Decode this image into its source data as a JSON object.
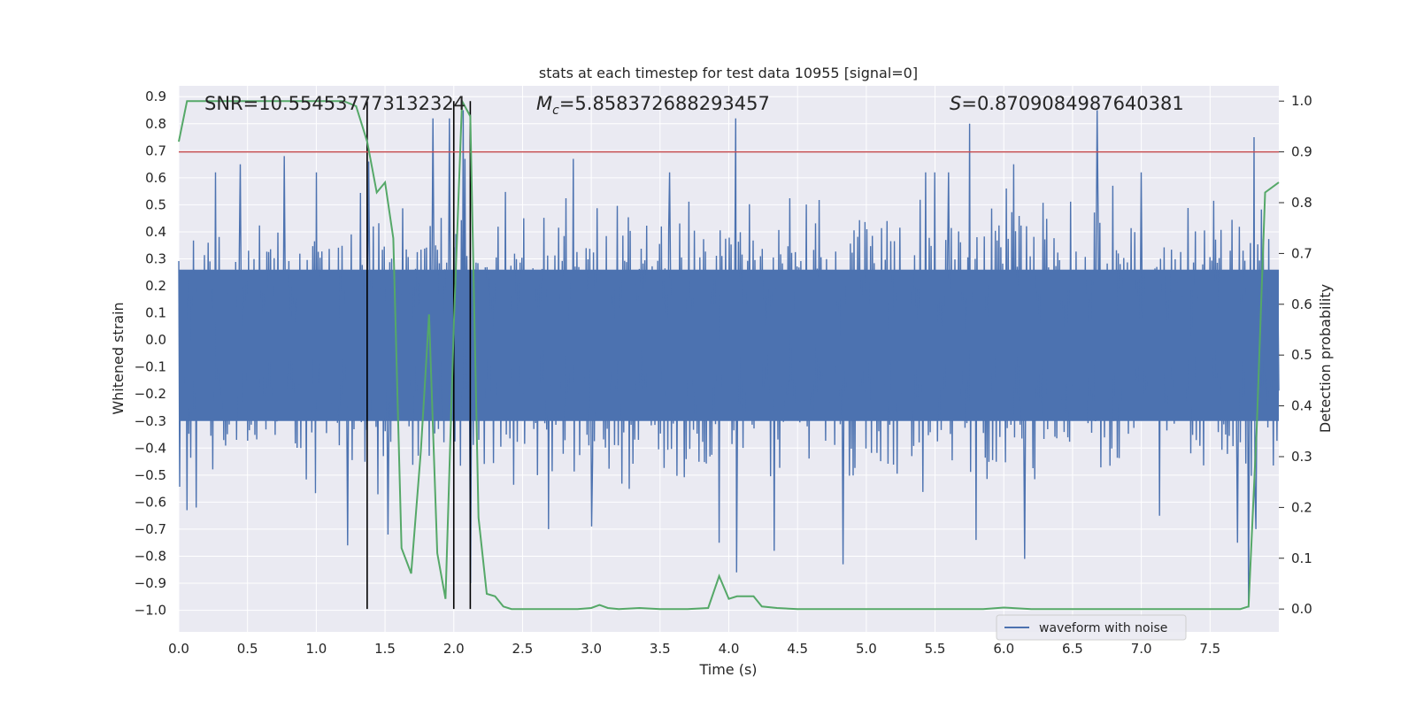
{
  "chart_data": {
    "type": "line",
    "title": "stats at each timestep for test data 10955 [signal=0]",
    "xlabel": "Time (s)",
    "ylabel_left": "Whitened strain",
    "ylabel_right": "Detection probability",
    "xlim": [
      0.0,
      8.0
    ],
    "ylim_left": [
      -1.08,
      0.94
    ],
    "ylim_right": [
      -0.045,
      1.03
    ],
    "grid": true,
    "x_ticks": [
      "0.0",
      "0.5",
      "1.0",
      "1.5",
      "2.0",
      "2.5",
      "3.0",
      "3.5",
      "4.0",
      "4.5",
      "5.0",
      "5.5",
      "6.0",
      "6.5",
      "7.0",
      "7.5"
    ],
    "x_tick_values": [
      0,
      0.5,
      1,
      1.5,
      2,
      2.5,
      3,
      3.5,
      4,
      4.5,
      5,
      5.5,
      6,
      6.5,
      7,
      7.5
    ],
    "y_left_ticks": [
      "0.9",
      "0.8",
      "0.7",
      "0.6",
      "0.5",
      "0.4",
      "0.3",
      "0.2",
      "0.1",
      "0.0",
      "−0.1",
      "−0.2",
      "−0.3",
      "−0.4",
      "−0.5",
      "−0.6",
      "−0.7",
      "−0.8",
      "−0.9",
      "−1.0"
    ],
    "y_left_tick_values": [
      0.9,
      0.8,
      0.7,
      0.6,
      0.5,
      0.4,
      0.3,
      0.2,
      0.1,
      0.0,
      -0.1,
      -0.2,
      -0.3,
      -0.4,
      -0.5,
      -0.6,
      -0.7,
      -0.8,
      -0.9,
      -1.0
    ],
    "y_right_ticks": [
      "1.0",
      "0.9",
      "0.8",
      "0.7",
      "0.6",
      "0.5",
      "0.4",
      "0.3",
      "0.2",
      "0.1",
      "0.0"
    ],
    "y_right_tick_values": [
      1.0,
      0.9,
      0.8,
      0.7,
      0.6,
      0.5,
      0.4,
      0.3,
      0.2,
      0.1,
      0.0
    ],
    "annotations": {
      "snr": "SNR=10.554537773132324",
      "mc_symbol": "M",
      "mc_sub": "c",
      "mc_value": "=5.858372688293457",
      "s_symbol": "S",
      "s_value": "=0.8709084987640381"
    },
    "threshold": {
      "axis": "right",
      "value": 0.9,
      "color": "#c44e52"
    },
    "vertical_lines": [
      1.37,
      2.0,
      2.12
    ],
    "waveform": {
      "name": "waveform with noise",
      "color": "#4c72b0",
      "samples": 1200,
      "typical_max": 0.45,
      "typical_min": -0.5,
      "spikes_up": [
        [
          0.27,
          0.62
        ],
        [
          0.45,
          0.65
        ],
        [
          0.77,
          0.68
        ],
        [
          1.0,
          0.62
        ],
        [
          1.38,
          0.66
        ],
        [
          1.85,
          0.82
        ],
        [
          1.97,
          0.82
        ],
        [
          2.07,
          0.85
        ],
        [
          2.08,
          0.67
        ],
        [
          2.87,
          0.67
        ],
        [
          3.57,
          0.62
        ],
        [
          4.05,
          0.82
        ],
        [
          5.43,
          0.62
        ],
        [
          5.5,
          0.62
        ],
        [
          5.6,
          0.62
        ],
        [
          5.75,
          0.8
        ],
        [
          6.07,
          0.65
        ],
        [
          6.68,
          0.85
        ],
        [
          7.0,
          0.62
        ],
        [
          7.82,
          0.75
        ]
      ],
      "spikes_down": [
        [
          0.06,
          -0.63
        ],
        [
          0.13,
          -0.62
        ],
        [
          1.23,
          -0.76
        ],
        [
          1.52,
          -0.72
        ],
        [
          2.12,
          -0.9
        ],
        [
          2.69,
          -0.7
        ],
        [
          3.0,
          -0.69
        ],
        [
          3.93,
          -0.75
        ],
        [
          4.06,
          -0.86
        ],
        [
          4.33,
          -0.78
        ],
        [
          4.83,
          -0.83
        ],
        [
          5.8,
          -0.74
        ],
        [
          6.15,
          -0.81
        ],
        [
          7.13,
          -0.65
        ],
        [
          7.7,
          -0.75
        ],
        [
          7.78,
          -0.99
        ],
        [
          7.83,
          -0.7
        ]
      ]
    },
    "detection_probability": {
      "color": "#55a868",
      "x": [
        0.0,
        0.06,
        0.2,
        0.4,
        0.6,
        0.8,
        1.0,
        1.2,
        1.29,
        1.37,
        1.44,
        1.5,
        1.56,
        1.62,
        1.69,
        1.76,
        1.82,
        1.88,
        1.94,
        2.0,
        2.06,
        2.12,
        2.18,
        2.24,
        2.3,
        2.36,
        2.42,
        2.5,
        2.7,
        2.9,
        3.0,
        3.06,
        3.12,
        3.2,
        3.35,
        3.5,
        3.7,
        3.85,
        3.93,
        4.0,
        4.06,
        4.18,
        4.24,
        4.35,
        4.5,
        5.0,
        5.5,
        5.85,
        6.0,
        6.2,
        6.5,
        7.0,
        7.5,
        7.72,
        7.78,
        7.84,
        7.9,
        8.0
      ],
      "y": [
        0.92,
        1.0,
        1.0,
        1.0,
        1.0,
        1.0,
        1.0,
        1.0,
        0.99,
        0.92,
        0.82,
        0.84,
        0.73,
        0.12,
        0.07,
        0.31,
        0.58,
        0.11,
        0.02,
        0.56,
        1.0,
        0.97,
        0.18,
        0.03,
        0.025,
        0.005,
        0.0,
        0.0,
        0.0,
        0.0,
        0.002,
        0.008,
        0.002,
        0.0,
        0.002,
        0.0,
        0.0,
        0.002,
        0.065,
        0.02,
        0.025,
        0.025,
        0.005,
        0.002,
        0.0,
        0.0,
        0.0,
        0.0,
        0.003,
        0.0,
        0.0,
        0.0,
        0.0,
        0.0,
        0.005,
        0.36,
        0.82,
        0.84
      ]
    },
    "legend": {
      "label": "waveform with noise",
      "position": "lower-right"
    }
  }
}
